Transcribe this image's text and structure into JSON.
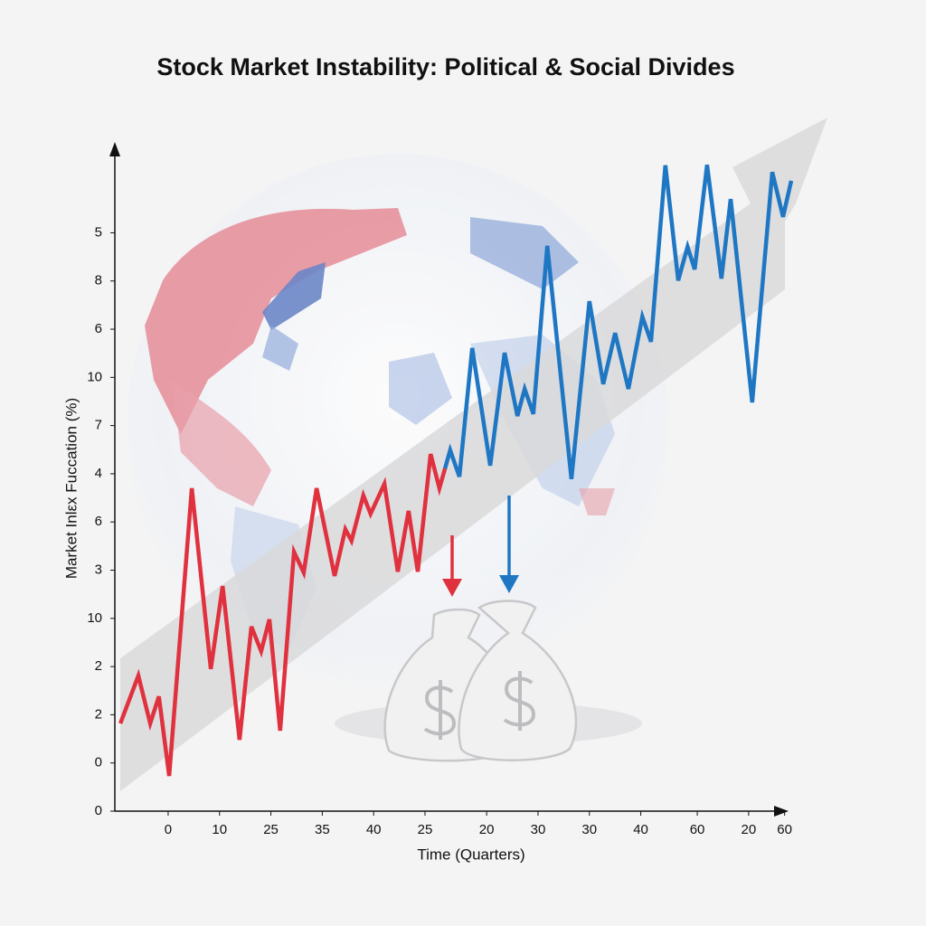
{
  "chart_data": {
    "type": "line",
    "title": "Stock Market Instability: Political & Social Divides",
    "x_label": "Time (Quarters)",
    "y_label": "Market Inlεx Fuccation (%)",
    "xlim": [
      -1.02,
      12.2
    ],
    "ylim": [
      0,
      13.8
    ],
    "xticks": [
      0,
      {
        "value": 1,
        "label": "10"
      },
      {
        "value": 2,
        "label": "25"
      },
      {
        "value": 3,
        "label": "35"
      },
      {
        "value": 4,
        "label": "40"
      },
      {
        "value": 5,
        "label": "25"
      },
      {
        "value": 6.2,
        "label": "20"
      },
      {
        "value": 7.2,
        "label": "30"
      },
      {
        "value": 8.2,
        "label": "30"
      },
      {
        "value": 9.2,
        "label": "40"
      },
      {
        "value": 10.3,
        "label": "60"
      },
      {
        "value": 11.3,
        "label": "20"
      },
      {
        "value": 12,
        "label": "60"
      }
    ],
    "yticks": [
      0,
      {
        "value": 1,
        "label": "0"
      },
      {
        "value": 2,
        "label": "2"
      },
      {
        "value": 3,
        "label": "2"
      },
      {
        "value": 4,
        "label": "10"
      },
      {
        "value": 5,
        "label": "3"
      },
      {
        "value": 6,
        "label": "6"
      },
      {
        "value": 7,
        "label": "4"
      },
      {
        "value": 8,
        "label": "7"
      },
      {
        "value": 9,
        "label": "10"
      },
      {
        "value": 10,
        "label": "6"
      },
      {
        "value": 11,
        "label": "8"
      },
      {
        "value": 12,
        "label": "5"
      }
    ],
    "series": [
      {
        "color": "#e0313f",
        "x": [
          -0.93,
          -0.58,
          -0.35,
          -0.18,
          0.02,
          0.46,
          0.83,
          1.06,
          1.39,
          1.62,
          1.81,
          1.97,
          2.18,
          2.45,
          2.64,
          2.89,
          3.24,
          3.45,
          3.57,
          3.8,
          3.94,
          4.21,
          4.47,
          4.68,
          4.86,
          5.11,
          5.28,
          5.39
        ],
        "values": [
          1.82,
          2.81,
          1.82,
          2.38,
          0.73,
          6.7,
          2.95,
          4.67,
          1.48,
          3.83,
          3.32,
          3.98,
          1.67,
          5.38,
          4.95,
          6.7,
          4.88,
          5.85,
          5.61,
          6.55,
          6.17,
          6.79,
          4.97,
          6.23,
          4.97,
          7.41,
          6.7,
          7.11
        ]
      },
      {
        "color": "#1f77c4",
        "x": [
          5.39,
          5.49,
          5.67,
          5.92,
          6.27,
          6.55,
          6.8,
          6.94,
          7.11,
          7.38,
          7.85,
          8.2,
          8.47,
          8.7,
          8.96,
          9.23,
          9.4,
          9.68,
          9.93,
          10.11,
          10.25,
          10.49,
          10.77,
          10.95,
          11.37,
          11.76,
          11.97,
          12.13
        ],
        "values": [
          7.11,
          7.49,
          6.94,
          9.61,
          7.17,
          9.51,
          8.2,
          8.76,
          8.24,
          11.73,
          6.89,
          10.58,
          8.86,
          9.92,
          8.76,
          10.26,
          9.74,
          13.4,
          11.01,
          11.71,
          11.24,
          13.41,
          11.05,
          12.7,
          8.48,
          13.26,
          12.33,
          13.08
        ]
      }
    ]
  }
}
